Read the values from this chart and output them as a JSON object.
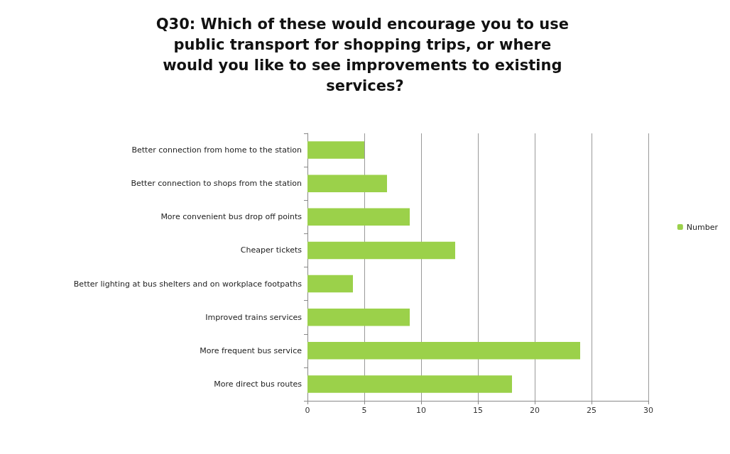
{
  "chart_data": {
    "type": "bar",
    "orientation": "horizontal",
    "title": "Q30: Which of these would encourage you to use public transport for shopping trips, or where would you like to see improvements to existing services?",
    "categories": [
      "Better connection from home to the station",
      "Better connection to shops from the station",
      "More convenient bus drop off points",
      "Cheaper tickets",
      "Better lighting at bus shelters and on workplace footpaths",
      "Improved trains services",
      "More frequent bus service",
      "More direct bus routes"
    ],
    "series": [
      {
        "name": "Number",
        "color": "#9bd14a",
        "values": [
          5,
          7,
          9,
          13,
          4,
          9,
          24,
          18
        ]
      }
    ],
    "xlim": [
      0,
      30
    ],
    "xticks": [
      0,
      5,
      10,
      15,
      20,
      25,
      30
    ],
    "grid": "x",
    "legend": "right"
  }
}
